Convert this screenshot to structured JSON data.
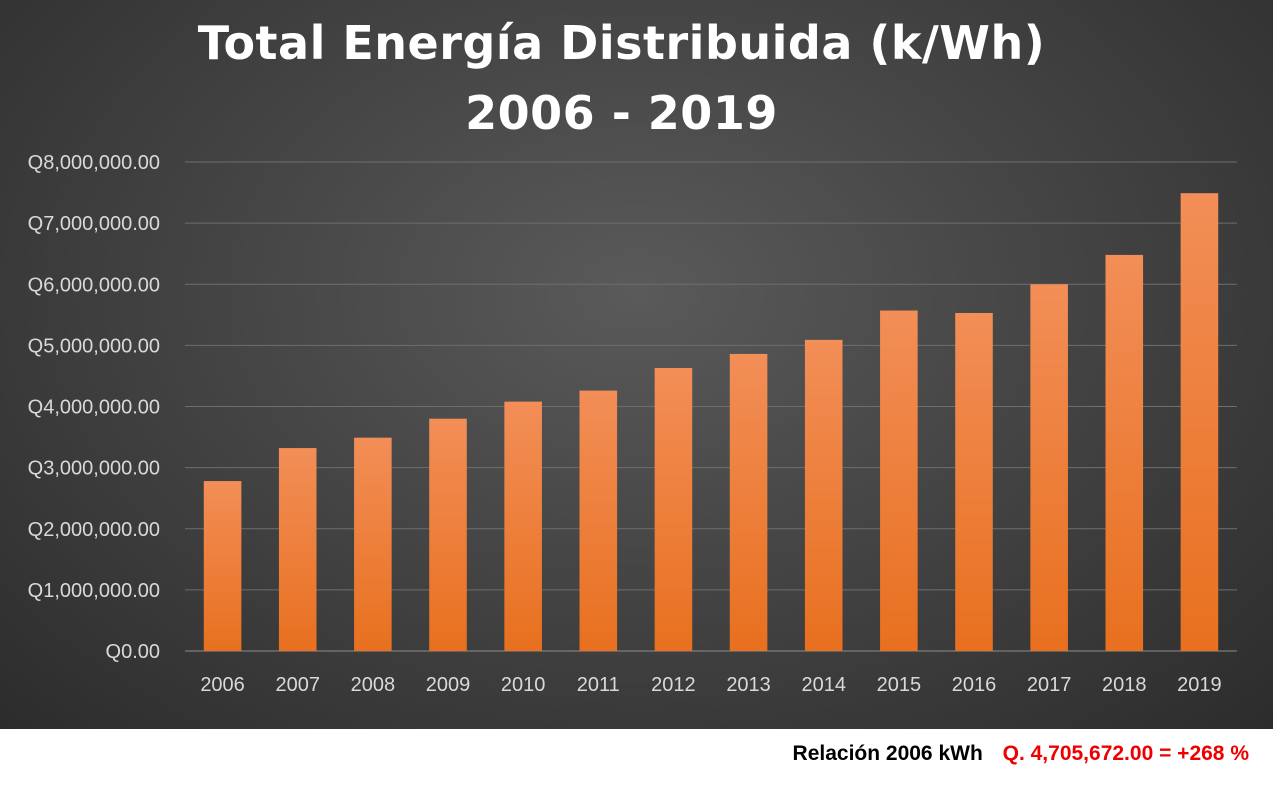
{
  "chart_data": {
    "type": "bar",
    "title_line1": "Total Energía Distribuida (k/Wh)",
    "title_line2": "2006 - 2019",
    "categories": [
      "2006",
      "2007",
      "2008",
      "2009",
      "2010",
      "2011",
      "2012",
      "2013",
      "2014",
      "2015",
      "2016",
      "2017",
      "2018",
      "2019"
    ],
    "series": [
      {
        "name": "Total Energía Distribuida",
        "values": [
          2780000,
          3320000,
          3490000,
          3800000,
          4080000,
          4260000,
          4630000,
          4860000,
          5090000,
          5570000,
          5530000,
          6000000,
          6480000,
          7490000
        ]
      }
    ],
    "y_ticks": [
      "Q0.00",
      "Q1,000,000.00",
      "Q2,000,000.00",
      "Q3,000,000.00",
      "Q4,000,000.00",
      "Q5,000,000.00",
      "Q6,000,000.00",
      "Q7,000,000.00",
      "Q8,000,000.00"
    ],
    "ylim": [
      0,
      8000000
    ],
    "ytick_step": 1000000,
    "grid": true,
    "xlabel": "",
    "ylabel": "",
    "colors": {
      "bar_top": "#f28e57",
      "bar_bottom": "#e8701f",
      "grid": "#6e6e6e",
      "axis": "#8c8c8c"
    }
  },
  "footer": {
    "label": "Relación 2006 kWh",
    "value": "Q. 4,705,672.00 = +268 %"
  }
}
